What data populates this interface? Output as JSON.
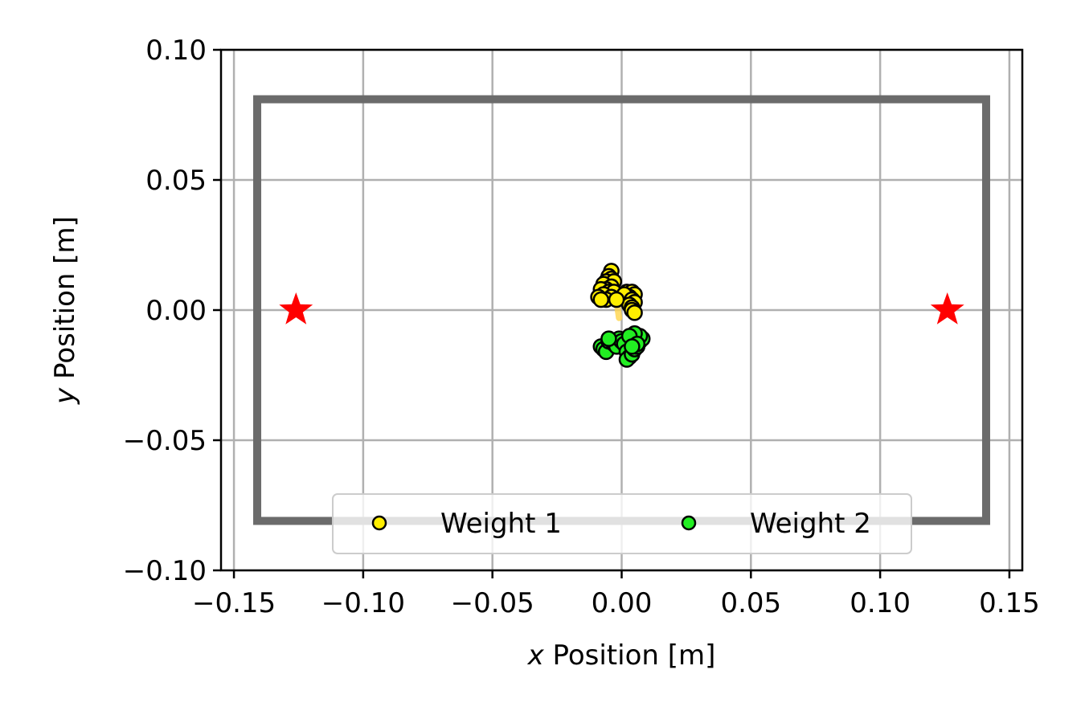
{
  "chart_data": {
    "type": "scatter",
    "xlabel_var": "x",
    "xlabel_rest": " Position [m]",
    "ylabel_var": "y",
    "ylabel_rest": " Position [m]",
    "xlim": [
      -0.155,
      0.155
    ],
    "ylim": [
      -0.1,
      0.1
    ],
    "x_ticks": [
      -0.15,
      -0.1,
      -0.05,
      0.0,
      0.05,
      0.1,
      0.15
    ],
    "x_tick_labels": [
      "−0.15",
      "−0.10",
      "−0.05",
      "0.00",
      "0.05",
      "0.10",
      "0.15"
    ],
    "y_ticks": [
      -0.1,
      -0.05,
      0.0,
      0.05,
      0.1
    ],
    "y_tick_labels": [
      "−0.10",
      "−0.05",
      "0.00",
      "0.05",
      "0.10"
    ],
    "grid": true,
    "boundary": {
      "x": [
        -0.141,
        0.141
      ],
      "y": [
        -0.081,
        0.081
      ],
      "color": "#6b6b6b"
    },
    "targets": {
      "color": "#ff0000",
      "points": [
        [
          -0.126,
          0.0
        ],
        [
          0.126,
          0.0
        ]
      ]
    },
    "series": [
      {
        "name": "Weight 1",
        "color": "#ffee00",
        "edge": "#000000",
        "trail_color": "#ffd54a",
        "points": [
          [
            -0.004,
            0.015
          ],
          [
            -0.005,
            0.013
          ],
          [
            -0.004,
            0.012
          ],
          [
            -0.006,
            0.011
          ],
          [
            -0.003,
            0.011
          ],
          [
            -0.007,
            0.01
          ],
          [
            -0.004,
            0.009
          ],
          [
            -0.006,
            0.008
          ],
          [
            -0.008,
            0.008
          ],
          [
            -0.005,
            0.007
          ],
          [
            -0.003,
            0.007
          ],
          [
            -0.007,
            0.006
          ],
          [
            -0.004,
            0.005
          ],
          [
            -0.009,
            0.005
          ],
          [
            -0.006,
            0.004
          ],
          [
            -0.008,
            0.004
          ],
          [
            0.002,
            0.007
          ],
          [
            0.004,
            0.007
          ],
          [
            0.005,
            0.006
          ],
          [
            0.003,
            0.005
          ],
          [
            0.001,
            0.006
          ],
          [
            0.004,
            0.004
          ],
          [
            0.005,
            0.003
          ],
          [
            0.003,
            0.002
          ],
          [
            0.004,
            0.001
          ],
          [
            0.004,
            0.0
          ],
          [
            0.005,
            -0.001
          ],
          [
            -0.002,
            0.004
          ]
        ]
      },
      {
        "name": "Weight 2",
        "color": "#22ee22",
        "edge": "#000000",
        "points": [
          [
            -0.008,
            -0.014
          ],
          [
            -0.007,
            -0.015
          ],
          [
            -0.006,
            -0.016
          ],
          [
            -0.005,
            -0.012
          ],
          [
            -0.003,
            -0.013
          ],
          [
            -0.002,
            -0.014
          ],
          [
            -0.001,
            -0.011
          ],
          [
            0.0,
            -0.012
          ],
          [
            0.001,
            -0.013
          ],
          [
            0.002,
            -0.016
          ],
          [
            0.003,
            -0.018
          ],
          [
            0.002,
            -0.019
          ],
          [
            0.004,
            -0.017
          ],
          [
            0.005,
            -0.015
          ],
          [
            0.006,
            -0.014
          ],
          [
            0.007,
            -0.012
          ],
          [
            0.008,
            -0.011
          ],
          [
            0.007,
            -0.01
          ],
          [
            0.005,
            -0.009
          ],
          [
            0.003,
            -0.01
          ],
          [
            0.006,
            -0.013
          ],
          [
            0.004,
            -0.014
          ],
          [
            -0.005,
            -0.011
          ]
        ]
      }
    ],
    "legend": {
      "placement": "lower-center",
      "entries": [
        "Weight 1",
        "Weight 2"
      ]
    }
  }
}
